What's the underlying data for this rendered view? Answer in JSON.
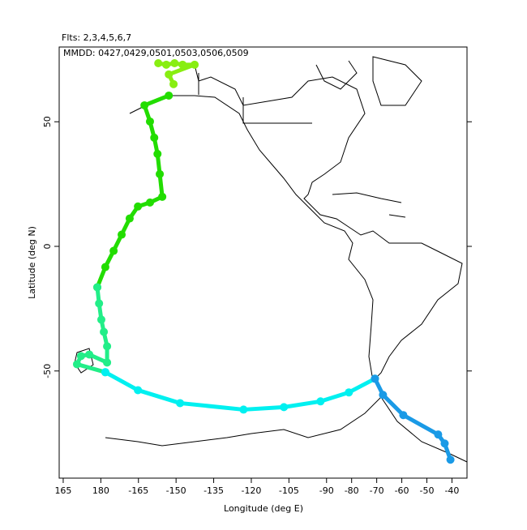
{
  "chart_data": {
    "type": "track",
    "title": "Flts: 2,3,4,5,6,7",
    "subtitle": "MMDD: 0427,0429,0501,0503,0506,0509",
    "x_label": "Longitude (deg E)",
    "y_label": "Latitude (deg N)",
    "xlim": [
      163.4,
      326
    ],
    "ylim": [
      -93,
      80
    ],
    "xticks": [
      165,
      180,
      {
        "value": 195,
        "label": "-165"
      },
      {
        "value": 210,
        "label": "-150"
      },
      {
        "value": 225,
        "label": "-135"
      },
      {
        "value": 240,
        "label": "-120"
      },
      {
        "value": 255,
        "label": "-105"
      },
      {
        "value": 270,
        "label": "-90"
      },
      {
        "value": 280,
        "label": "-80"
      },
      {
        "value": 290,
        "label": "-70"
      },
      {
        "value": 300,
        "label": "-60"
      },
      {
        "value": 310,
        "label": "-50"
      },
      {
        "value": 320,
        "label": "-40"
      }
    ],
    "yticks": [
      -50,
      0,
      50
    ],
    "series": [
      {
        "color": "#88ee11",
        "x": [
          202.9,
          206.1,
          209.4,
          212.6,
          217.4,
          207.1,
          209.0
        ],
        "values": [
          73.5,
          72.9,
          73.5,
          72.9,
          72.9,
          69.0,
          65.1
        ]
      },
      {
        "color": "#22dd00",
        "x": [
          207.1,
          197.4,
          199.6,
          201.3,
          202.6,
          203.5,
          204.5,
          199.6,
          194.8,
          191.5,
          188.3,
          185.1,
          181.8,
          178.6
        ],
        "values": [
          60.5,
          56.6,
          50.1,
          43.6,
          37.1,
          29.0,
          19.9,
          17.6,
          16.0,
          11.2,
          4.7,
          -1.8,
          -8.3,
          -16.4
        ]
      },
      {
        "color": "#22ee88",
        "x": [
          178.6,
          179.3,
          180.2,
          181.2,
          182.5,
          182.5,
          175.4,
          172.1,
          170.5,
          181.8
        ],
        "values": [
          -16.4,
          -22.9,
          -29.4,
          -34.3,
          -40.1,
          -46.6,
          -43.4,
          -44.0,
          -47.3,
          -50.5
        ]
      },
      {
        "color": "#00f0f0",
        "x": [
          181.8,
          194.8,
          211.6,
          236.9,
          253.0,
          267.6,
          278.9,
          289.3
        ],
        "values": [
          -50.5,
          -57.7,
          -62.9,
          -65.5,
          -64.5,
          -62.2,
          -58.6,
          -53.1
        ]
      },
      {
        "color": "#1a9ae6",
        "x": [
          289.3,
          292.5,
          300.6,
          314.5,
          317.1,
          319.4
        ],
        "values": [
          -53.1,
          -59.6,
          -67.7,
          -75.5,
          -79.1,
          -85.6
        ]
      }
    ]
  }
}
